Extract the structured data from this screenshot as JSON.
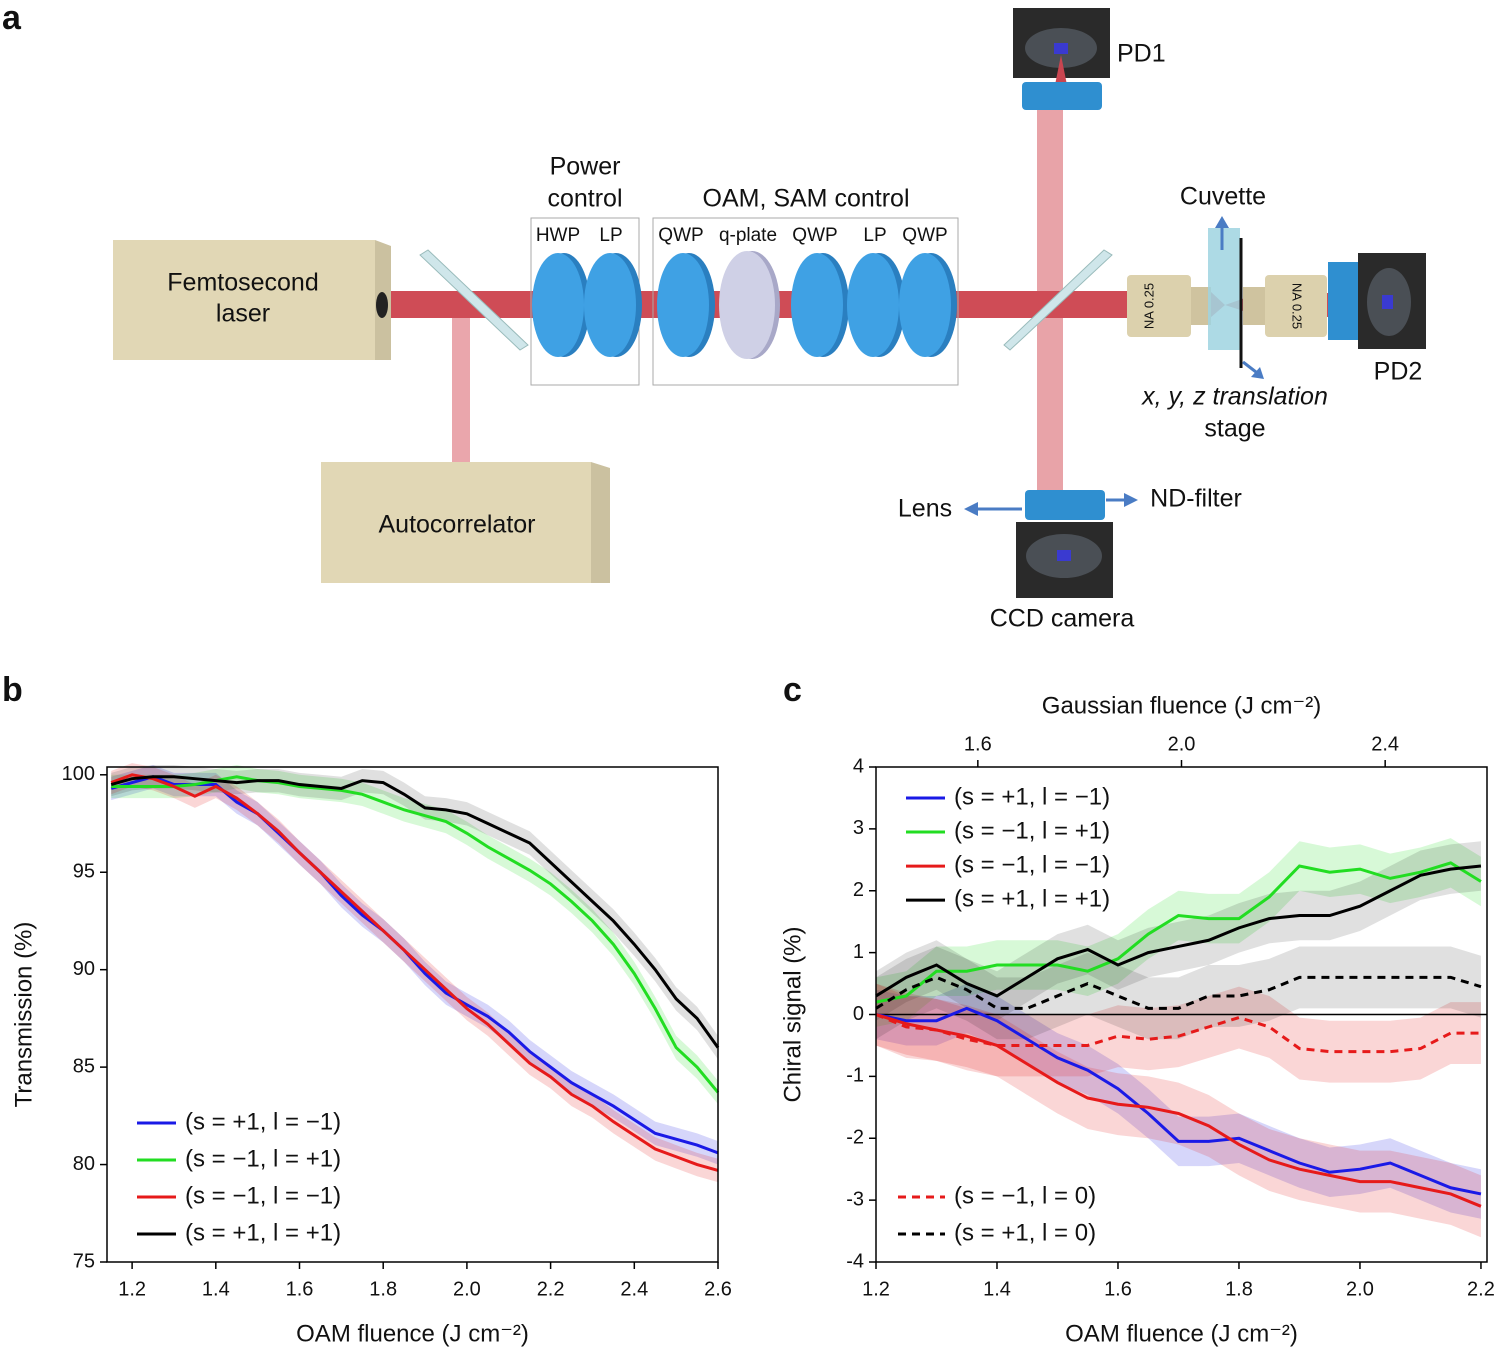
{
  "panels": {
    "a": "a",
    "b": "b",
    "c": "c"
  },
  "diagram": {
    "laser": [
      "Femtosecond",
      "laser"
    ],
    "autocorrelator": "Autocorrelator",
    "power_control": [
      "Power",
      "control"
    ],
    "oam_sam_control": "OAM, SAM control",
    "optics": [
      "HWP",
      "LP",
      "QWP",
      "q-plate",
      "QWP",
      "LP",
      "QWP"
    ],
    "cuvette": "Cuvette",
    "stage": [
      "x, y, z translation",
      "stage"
    ],
    "pd1": "PD1",
    "pd2": "PD2",
    "lens": "Lens",
    "nd_filter": "ND-filter",
    "ccd": "CCD camera",
    "objective_1": "NA 0.25",
    "objective_2": "NA 0.25"
  },
  "chart_data": [
    {
      "type": "line",
      "xlabel": "OAM fluence (J cm⁻²)",
      "ylabel": "Transmission (%)",
      "xlim": [
        1.14,
        2.6
      ],
      "ylim": [
        75,
        100.4
      ],
      "xticks": [
        1.2,
        1.4,
        1.6,
        1.8,
        {
          "value": 2,
          "label": "2.0"
        },
        2.2,
        2.4,
        2.6
      ],
      "yticks": [
        75,
        80,
        85,
        90,
        95,
        100
      ],
      "x": [
        1.15,
        1.2,
        1.25,
        1.3,
        1.35,
        1.4,
        1.45,
        1.5,
        1.55,
        1.6,
        1.65,
        1.7,
        1.75,
        1.8,
        1.85,
        1.9,
        1.95,
        2.0,
        2.05,
        2.1,
        2.15,
        2.2,
        2.25,
        2.3,
        2.35,
        2.4,
        2.45,
        2.5,
        2.55,
        2.6
      ],
      "series": [
        {
          "name": "(s = +1, l = −1)",
          "color": "#1a1ae6",
          "dash": "solid",
          "legend_loc": "lower left",
          "error": 0.6,
          "values": [
            99.3,
            99.6,
            99.9,
            99.5,
            99.5,
            99.5,
            98.6,
            98,
            97,
            96,
            95,
            93.8,
            92.8,
            92,
            91,
            89.8,
            88.8,
            88.2,
            87.6,
            86.8,
            85.8,
            85,
            84.2,
            83.6,
            83,
            82.3,
            81.6,
            81.3,
            81,
            80.6
          ]
        },
        {
          "name": "(s = −1, l = +1)",
          "color": "#22dd22",
          "dash": "solid",
          "legend_loc": "lower left",
          "error": 0.6,
          "values": [
            99.4,
            99.4,
            99.4,
            99.4,
            99.5,
            99.7,
            99.9,
            99.7,
            99.6,
            99.4,
            99.3,
            99.2,
            99,
            98.6,
            98.2,
            97.9,
            97.6,
            97,
            96.3,
            95.7,
            95.1,
            94.4,
            93.5,
            92.5,
            91.3,
            89.8,
            88,
            86,
            85,
            83.7
          ]
        },
        {
          "name": "(s = −1, l = −1)",
          "color": "#e61a1a",
          "dash": "solid",
          "legend_loc": "lower left",
          "error": 0.6,
          "values": [
            99.6,
            100,
            99.8,
            99.4,
            98.9,
            99.4,
            98.8,
            98,
            97.1,
            96,
            95,
            94,
            93,
            92,
            91,
            90,
            89,
            88,
            87.2,
            86.2,
            85.2,
            84.5,
            83.6,
            83,
            82.2,
            81.5,
            80.8,
            80.4,
            80,
            79.7
          ]
        },
        {
          "name": "(s = +1, l = +1)",
          "color": "#000000",
          "dash": "solid",
          "legend_loc": "lower left",
          "error": 0.6,
          "values": [
            99.5,
            99.8,
            99.9,
            99.9,
            99.8,
            99.7,
            99.6,
            99.7,
            99.7,
            99.5,
            99.4,
            99.3,
            99.7,
            99.6,
            99,
            98.3,
            98.2,
            98,
            97.5,
            97,
            96.5,
            95.5,
            94.5,
            93.5,
            92.5,
            91.3,
            90,
            88.5,
            87.5,
            86
          ]
        }
      ]
    },
    {
      "type": "line",
      "xlabel": "OAM fluence (J cm⁻²)",
      "ylabel": "Chiral signal (%)",
      "x2label": "Gaussian fluence (J cm⁻²)",
      "xlim": [
        1.2,
        2.21
      ],
      "ylim": [
        -4,
        4
      ],
      "x2lim": [
        1.4,
        2.6
      ],
      "xticks": [
        1.2,
        1.4,
        1.6,
        1.8,
        {
          "value": 2,
          "label": "2.0"
        },
        2.2
      ],
      "x2ticks": [
        1.6,
        {
          "value": 2,
          "label": "2.0"
        },
        2.4
      ],
      "yticks": [
        -4,
        -3,
        -2,
        -1,
        0,
        1,
        2,
        3,
        4
      ],
      "hline": 0,
      "x": [
        1.2,
        1.25,
        1.3,
        1.35,
        1.4,
        1.45,
        1.5,
        1.55,
        1.6,
        1.65,
        1.7,
        1.75,
        1.8,
        1.85,
        1.9,
        1.95,
        2.0,
        2.05,
        2.1,
        2.15,
        2.2
      ],
      "series": [
        {
          "name": "(s = +1, l = −1)",
          "color": "#1a1ae6",
          "dash": "solid",
          "legend_loc": "upper left",
          "error": 0.4,
          "values": [
            0,
            -0.1,
            -0.1,
            0.1,
            -0.1,
            -0.4,
            -0.7,
            -0.9,
            -1.2,
            -1.6,
            -2.05,
            -2.05,
            -2,
            -2.2,
            -2.4,
            -2.55,
            -2.5,
            -2.4,
            -2.6,
            -2.8,
            -2.9
          ]
        },
        {
          "name": "(s = −1, l = +1)",
          "color": "#22dd22",
          "dash": "solid",
          "legend_loc": "upper left",
          "error": 0.4,
          "values": [
            0.2,
            0.3,
            0.7,
            0.7,
            0.8,
            0.8,
            0.8,
            0.7,
            0.9,
            1.3,
            1.6,
            1.55,
            1.55,
            1.9,
            2.4,
            2.3,
            2.35,
            2.2,
            2.3,
            2.45,
            2.15
          ]
        },
        {
          "name": "(s = −1, l = −1)",
          "color": "#e61a1a",
          "dash": "solid",
          "legend_loc": "upper left",
          "error": 0.5,
          "values": [
            0,
            -0.15,
            -0.25,
            -0.35,
            -0.5,
            -0.8,
            -1.1,
            -1.35,
            -1.45,
            -1.5,
            -1.6,
            -1.8,
            -2.1,
            -2.35,
            -2.5,
            -2.6,
            -2.7,
            -2.7,
            -2.8,
            -2.9,
            -3.1
          ]
        },
        {
          "name": "(s = +1, l = +1)",
          "color": "#000000",
          "dash": "solid",
          "legend_loc": "upper left",
          "error": 0.4,
          "values": [
            0.3,
            0.6,
            0.8,
            0.5,
            0.3,
            0.6,
            0.9,
            1.05,
            0.8,
            1,
            1.1,
            1.2,
            1.4,
            1.55,
            1.6,
            1.6,
            1.75,
            2,
            2.25,
            2.35,
            2.4
          ]
        },
        {
          "name": "(s = −1, l = 0)",
          "color": "#e61a1a",
          "dash": "dashed",
          "legend_loc": "lower left",
          "error": 0.5,
          "values": [
            0,
            -0.2,
            -0.25,
            -0.4,
            -0.5,
            -0.5,
            -0.5,
            -0.5,
            -0.35,
            -0.4,
            -0.35,
            -0.2,
            -0.05,
            -0.2,
            -0.55,
            -0.6,
            -0.6,
            -0.6,
            -0.55,
            -0.3,
            -0.3
          ]
        },
        {
          "name": "(s = +1, l = 0)",
          "color": "#000000",
          "dash": "dashed",
          "legend_loc": "lower left",
          "error": 0.5,
          "values": [
            0.1,
            0.4,
            0.6,
            0.4,
            0.1,
            0.1,
            0.3,
            0.5,
            0.3,
            0.1,
            0.1,
            0.3,
            0.3,
            0.4,
            0.6,
            0.6,
            0.6,
            0.6,
            0.6,
            0.6,
            0.45
          ]
        }
      ]
    }
  ]
}
